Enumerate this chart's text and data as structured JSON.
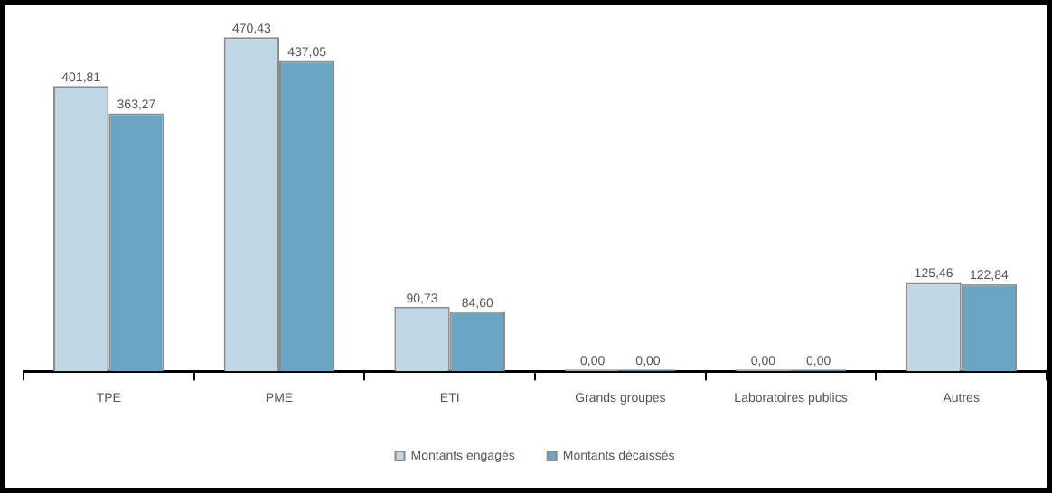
{
  "chart_data": {
    "type": "bar",
    "categories": [
      "TPE",
      "PME",
      "ETI",
      "Grands groupes",
      "Laboratoires publics",
      "Autres"
    ],
    "series": [
      {
        "name": "Montants engagés",
        "color": "#c0d7e4",
        "values": [
          401.81,
          470.43,
          90.73,
          0,
          0,
          125.46
        ],
        "value_labels": [
          "401,81",
          "470,43",
          "90,73",
          "0,00",
          "0,00",
          "125,46"
        ]
      },
      {
        "name": "Montants décaissés",
        "color": "#6ca4c4",
        "values": [
          363.27,
          437.05,
          84.6,
          0,
          0,
          122.84
        ],
        "value_labels": [
          "363,27",
          "437,05",
          "84,60",
          "0,00",
          "0,00",
          "122,84"
        ]
      }
    ],
    "legend": "bottom",
    "grid": false
  }
}
